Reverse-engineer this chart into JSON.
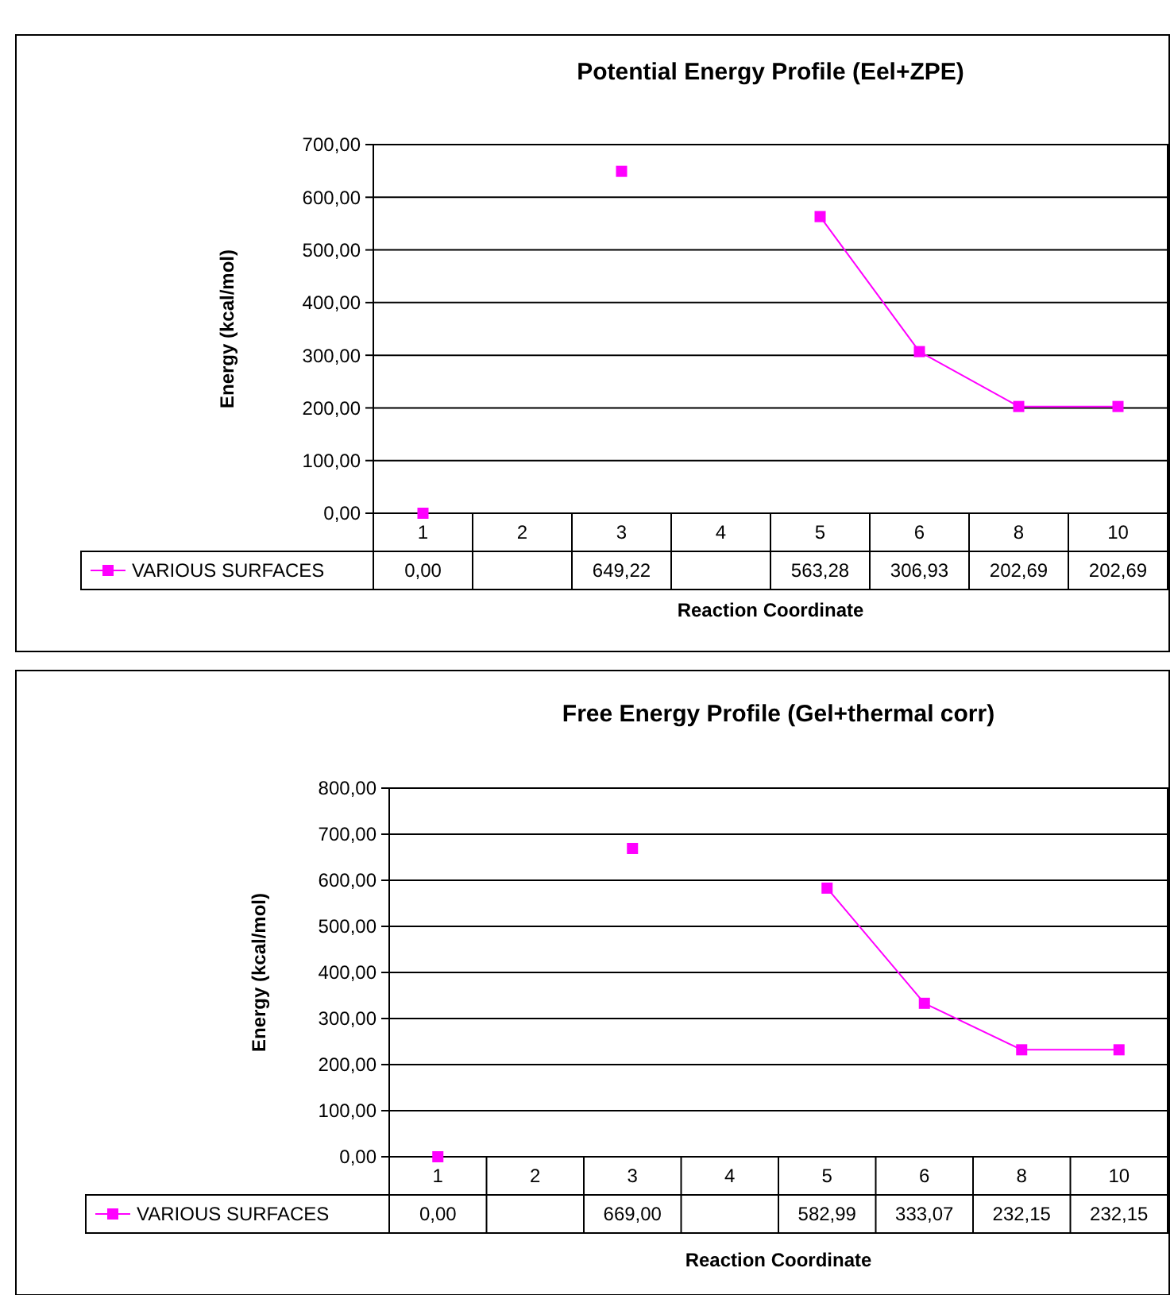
{
  "chart_data": [
    {
      "type": "line",
      "title": "Potential Energy Profile (Eel+ZPE)",
      "xlabel": "Reaction Coordinate",
      "ylabel": "Energy (kcal/mol)",
      "categories": [
        "1",
        "2",
        "3",
        "4",
        "5",
        "6",
        "8",
        "10"
      ],
      "series": [
        {
          "name": "VARIOUS SURFACES",
          "color": "#ff00ff",
          "values": [
            0,
            null,
            649.22,
            null,
            563.28,
            306.93,
            202.69,
            202.69
          ],
          "value_labels": [
            "0,00",
            null,
            "649,22",
            null,
            "563,28",
            "306,93",
            "202,69",
            "202,69"
          ]
        }
      ],
      "ylim": [
        0,
        700
      ],
      "yticks": [
        {
          "value": 0,
          "label": "0,00"
        },
        {
          "value": 100,
          "label": "100,00"
        },
        {
          "value": 200,
          "label": "200,00"
        },
        {
          "value": 300,
          "label": "300,00"
        },
        {
          "value": 400,
          "label": "400,00"
        },
        {
          "value": 500,
          "label": "500,00"
        },
        {
          "value": 600,
          "label": "600,00"
        },
        {
          "value": 700,
          "label": "700,00"
        }
      ],
      "grid": "y",
      "legend": "bottom left",
      "marker": "square",
      "line_style": "solid"
    },
    {
      "type": "line",
      "title": "Free Energy Profile (Gel+thermal corr)",
      "xlabel": "Reaction Coordinate",
      "ylabel": "Energy (kcal/mol)",
      "categories": [
        "1",
        "2",
        "3",
        "4",
        "5",
        "6",
        "8",
        "10"
      ],
      "series": [
        {
          "name": "VARIOUS SURFACES",
          "color": "#ff00ff",
          "values": [
            0,
            null,
            669.0,
            null,
            582.99,
            333.07,
            232.15,
            232.15
          ],
          "value_labels": [
            "0,00",
            null,
            "669,00",
            null,
            "582,99",
            "333,07",
            "232,15",
            "232,15"
          ]
        }
      ],
      "ylim": [
        0,
        800
      ],
      "yticks": [
        {
          "value": 0,
          "label": "0,00"
        },
        {
          "value": 100,
          "label": "100,00"
        },
        {
          "value": 200,
          "label": "200,00"
        },
        {
          "value": 300,
          "label": "300,00"
        },
        {
          "value": 400,
          "label": "400,00"
        },
        {
          "value": 500,
          "label": "500,00"
        },
        {
          "value": 600,
          "label": "600,00"
        },
        {
          "value": 700,
          "label": "700,00"
        },
        {
          "value": 800,
          "label": "800,00"
        }
      ],
      "grid": "y",
      "legend": "bottom left",
      "marker": "square",
      "line_style": "solid"
    }
  ]
}
